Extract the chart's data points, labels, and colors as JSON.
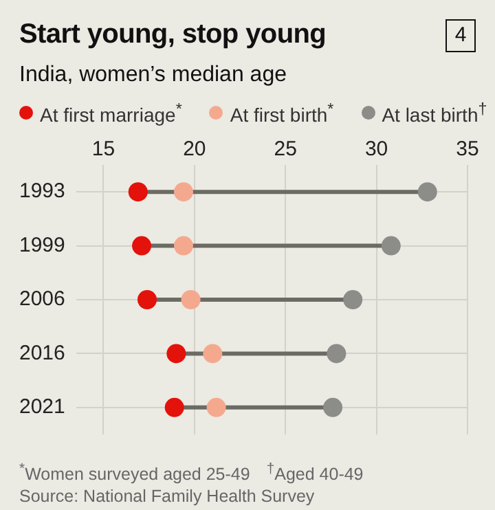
{
  "chart_data": {
    "type": "scatter",
    "title": "Start young, stop young",
    "subtitle": "India, women’s median age",
    "categories": [
      "1993",
      "1999",
      "2006",
      "2016",
      "2021"
    ],
    "series": [
      {
        "name": "At first marriage$^{*}$",
        "color": "#e3120b",
        "values": [
          16.9,
          17.1,
          17.4,
          19.0,
          18.9
        ]
      },
      {
        "name": "At first birth$^{*}$",
        "color": "#f4a98f",
        "values": [
          19.4,
          19.4,
          19.8,
          21.0,
          21.2
        ]
      },
      {
        "name": "At last birth$^{†}$",
        "color": "#8c8c88",
        "values": [
          32.8,
          30.8,
          28.7,
          27.8,
          27.6
        ]
      }
    ],
    "orientation": "horizontal",
    "xlim": [
      13.5,
      35
    ],
    "xticks": [
      15,
      20,
      25,
      30,
      35
    ],
    "grid": true,
    "legend": "top left",
    "marker": "circle",
    "annotations": [
      "4",
      "$^{*}$Women surveyed aged 25-49",
      "$^{†}$Aged 40-49",
      "Source: National Family Health Survey"
    ]
  }
}
